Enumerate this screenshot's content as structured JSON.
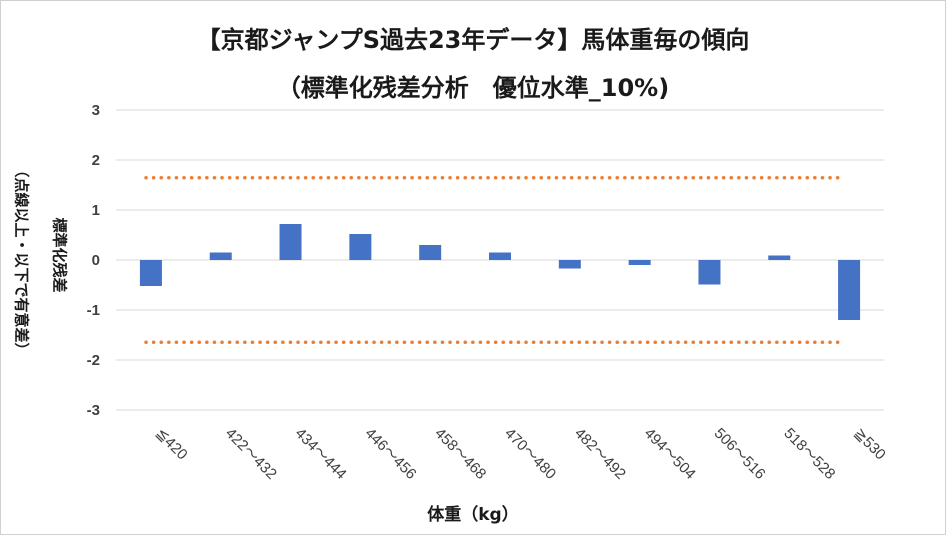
{
  "chart_data": {
    "type": "bar",
    "title": "【京都ジャンプS過去23年データ】馬体重毎の傾向",
    "subtitle": "（標準化残差分析　優位水準_10%)",
    "xlabel": "体重（kg）",
    "ylabel": "標準化残差",
    "ylabel_note": "（点線以上・以下で有意差）",
    "categories": [
      "≦420",
      "422～432",
      "434～444",
      "446～456",
      "458～468",
      "470～480",
      "482～492",
      "494～504",
      "506～516",
      "518～528",
      "≧530"
    ],
    "values": [
      -0.52,
      0.15,
      0.72,
      0.52,
      0.3,
      0.15,
      -0.17,
      -0.1,
      -0.49,
      0.09,
      -1.2
    ],
    "ylim": [
      -3,
      3
    ],
    "yticks": [
      3,
      2,
      1,
      0,
      -1,
      -2,
      -3
    ],
    "threshold_upper": 1.645,
    "threshold_lower": -1.645,
    "grid": true,
    "legend": "none",
    "colors": {
      "bar": "#4472C4",
      "threshold": "#ED7D31",
      "grid": "#d9d9d9"
    }
  }
}
